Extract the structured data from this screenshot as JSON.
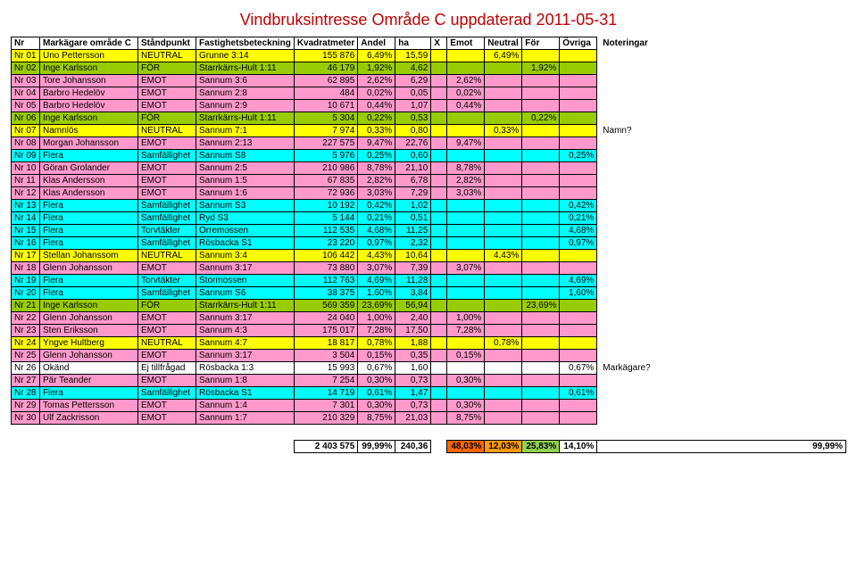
{
  "title": "Vindbruksintresse Område C uppdaterad 2011-05-31",
  "columns": [
    "Nr",
    "Markägare område C",
    "Ståndpunkt",
    "Fastighetsbeteckning",
    "Kvadratmeter",
    "Andel",
    "ha",
    "X",
    "Emot",
    "Neutral",
    "För",
    "Övriga",
    "Noteringar"
  ],
  "col_widths": [
    "32px",
    "110px",
    "65px",
    "100px",
    "65px",
    "42px",
    "40px",
    "18px",
    "42px",
    "42px",
    "42px",
    "42px",
    "auto"
  ],
  "colors": {
    "yellow": "#ffff00",
    "pink": "#ff99cc",
    "green": "#99cc00",
    "cyan": "#00ffff",
    "orange": "#ff9900",
    "darkorange": "#ff6600",
    "lightgreen": "#92d050",
    "white": "#ffffff"
  },
  "rows": [
    {
      "nr": "Nr 01",
      "mark": "Uno Pettersson",
      "stand": "NEUTRAL",
      "fast": "Grunne 3:14",
      "kvm": "155 876",
      "andel": "6,49%",
      "ha": "15,59",
      "x": "",
      "emot": "",
      "neutral": "6,49%",
      "for": "",
      "ovr": "",
      "note": "",
      "bg": "yellow"
    },
    {
      "nr": "Nr 02",
      "mark": "Inge Karlsson",
      "stand": "FÖR",
      "fast": "Starrkärrs-Hult 1:11",
      "kvm": "46 179",
      "andel": "1,92%",
      "ha": "4,62",
      "x": "",
      "emot": "",
      "neutral": "",
      "for": "1,92%",
      "ovr": "",
      "note": "",
      "bg": "green"
    },
    {
      "nr": "Nr 03",
      "mark": "Tore Johansson",
      "stand": "EMOT",
      "fast": "Sannum 3:6",
      "kvm": "62 895",
      "andel": "2,62%",
      "ha": "6,29",
      "x": "",
      "emot": "2,62%",
      "neutral": "",
      "for": "",
      "ovr": "",
      "note": "",
      "bg": "pink"
    },
    {
      "nr": "Nr 04",
      "mark": "Barbro Hedelöv",
      "stand": "EMOT",
      "fast": "Sannum 2:8",
      "kvm": "484",
      "andel": "0,02%",
      "ha": "0,05",
      "x": "",
      "emot": "0,02%",
      "neutral": "",
      "for": "",
      "ovr": "",
      "note": "",
      "bg": "pink"
    },
    {
      "nr": "Nr 05",
      "mark": "Barbro Hedelöv",
      "stand": "EMOT",
      "fast": "Sannum 2:9",
      "kvm": "10 671",
      "andel": "0,44%",
      "ha": "1,07",
      "x": "",
      "emot": "0,44%",
      "neutral": "",
      "for": "",
      "ovr": "",
      "note": "",
      "bg": "pink"
    },
    {
      "nr": "Nr 06",
      "mark": "Inge Karlsson",
      "stand": "FÖR",
      "fast": "Starrkärrs-Hult 1:11",
      "kvm": "5 304",
      "andel": "0,22%",
      "ha": "0,53",
      "x": "",
      "emot": "",
      "neutral": "",
      "for": "0,22%",
      "ovr": "",
      "note": "",
      "bg": "green"
    },
    {
      "nr": "Nr 07",
      "mark": "Namnlös",
      "stand": "NEUTRAL",
      "fast": "Sannum 7:1",
      "kvm": "7 974",
      "andel": "0,33%",
      "ha": "0,80",
      "x": "",
      "emot": "",
      "neutral": "0,33%",
      "for": "",
      "ovr": "",
      "note": "Namn?",
      "bg": "yellow"
    },
    {
      "nr": "Nr 08",
      "mark": "Morgan Johansson",
      "stand": "EMOT",
      "fast": "Sannum 2:13",
      "kvm": "227 575",
      "andel": "9,47%",
      "ha": "22,76",
      "x": "",
      "emot": "9,47%",
      "neutral": "",
      "for": "",
      "ovr": "",
      "note": "",
      "bg": "pink"
    },
    {
      "nr": "Nr 09",
      "mark": "Flera",
      "stand": "Samfällighet",
      "fast": "Sannum S8",
      "kvm": "5 976",
      "andel": "0,25%",
      "ha": "0,60",
      "x": "",
      "emot": "",
      "neutral": "",
      "for": "",
      "ovr": "0,25%",
      "note": "",
      "bg": "cyan"
    },
    {
      "nr": "Nr 10",
      "mark": "Göran Grolander",
      "stand": "EMOT",
      "fast": "Sannum 2:5",
      "kvm": "210 986",
      "andel": "8,78%",
      "ha": "21,10",
      "x": "",
      "emot": "8,78%",
      "neutral": "",
      "for": "",
      "ovr": "",
      "note": "",
      "bg": "pink"
    },
    {
      "nr": "Nr 11",
      "mark": "Klas Andersson",
      "stand": "EMOT",
      "fast": "Sannum 1:5",
      "kvm": "67 835",
      "andel": "2,82%",
      "ha": "6,78",
      "x": "",
      "emot": "2,82%",
      "neutral": "",
      "for": "",
      "ovr": "",
      "note": "",
      "bg": "pink"
    },
    {
      "nr": "Nr 12",
      "mark": "Klas Andersson",
      "stand": "EMOT",
      "fast": "Sannum 1:6",
      "kvm": "72 936",
      "andel": "3,03%",
      "ha": "7,29",
      "x": "",
      "emot": "3,03%",
      "neutral": "",
      "for": "",
      "ovr": "",
      "note": "",
      "bg": "pink"
    },
    {
      "nr": "Nr 13",
      "mark": "Flera",
      "stand": "Samfällighet",
      "fast": "Sannum S3",
      "kvm": "10 192",
      "andel": "0,42%",
      "ha": "1,02",
      "x": "",
      "emot": "",
      "neutral": "",
      "for": "",
      "ovr": "0,42%",
      "note": "",
      "bg": "cyan"
    },
    {
      "nr": "Nr 14",
      "mark": "Flera",
      "stand": "Samfällighet",
      "fast": "Ryd S3",
      "kvm": "5 144",
      "andel": "0,21%",
      "ha": "0,51",
      "x": "",
      "emot": "",
      "neutral": "",
      "for": "",
      "ovr": "0,21%",
      "note": "",
      "bg": "cyan"
    },
    {
      "nr": "Nr 15",
      "mark": "Flera",
      "stand": "Torvtäkter",
      "fast": "Orremossen",
      "kvm": "112 535",
      "andel": "4,68%",
      "ha": "11,25",
      "x": "",
      "emot": "",
      "neutral": "",
      "for": "",
      "ovr": "4,68%",
      "note": "",
      "bg": "cyan"
    },
    {
      "nr": "Nr 16",
      "mark": "Flera",
      "stand": "Samfällighet",
      "fast": "Rösbacka S1",
      "kvm": "23 220",
      "andel": "0,97%",
      "ha": "2,32",
      "x": "",
      "emot": "",
      "neutral": "",
      "for": "",
      "ovr": "0,97%",
      "note": "",
      "bg": "cyan"
    },
    {
      "nr": "Nr 17",
      "mark": "Stellan Johanssom",
      "stand": "NEUTRAL",
      "fast": "Sannum 3:4",
      "kvm": "106 442",
      "andel": "4,43%",
      "ha": "10,64",
      "x": "",
      "emot": "",
      "neutral": "4,43%",
      "for": "",
      "ovr": "",
      "note": "",
      "bg": "yellow"
    },
    {
      "nr": "Nr 18",
      "mark": "Glenn Johansson",
      "stand": "EMOT",
      "fast": "Sannum 3:17",
      "kvm": "73 880",
      "andel": "3,07%",
      "ha": "7,39",
      "x": "",
      "emot": "3,07%",
      "neutral": "",
      "for": "",
      "ovr": "",
      "note": "",
      "bg": "pink"
    },
    {
      "nr": "Nr 19",
      "mark": "Flera",
      "stand": "Torvtäkter",
      "fast": "Stormossen",
      "kvm": "112 763",
      "andel": "4,69%",
      "ha": "11,28",
      "x": "",
      "emot": "",
      "neutral": "",
      "for": "",
      "ovr": "4,69%",
      "note": "",
      "bg": "cyan"
    },
    {
      "nr": "Nr 20",
      "mark": "Flera",
      "stand": "Samfällighet",
      "fast": "Sannum S6",
      "kvm": "38 375",
      "andel": "1,60%",
      "ha": "3,84",
      "x": "",
      "emot": "",
      "neutral": "",
      "for": "",
      "ovr": "1,60%",
      "note": "",
      "bg": "cyan"
    },
    {
      "nr": "Nr 21",
      "mark": "Inge Karlsson",
      "stand": "FÖR",
      "fast": "Starrkärrs-Hult 1:11",
      "kvm": "569 359",
      "andel": "23,69%",
      "ha": "56,94",
      "x": "",
      "emot": "",
      "neutral": "",
      "for": "23,69%",
      "ovr": "",
      "note": "",
      "bg": "green"
    },
    {
      "nr": "Nr 22",
      "mark": "Glenn Johansson",
      "stand": "EMOT",
      "fast": "Sannum 3:17",
      "kvm": "24 040",
      "andel": "1,00%",
      "ha": "2,40",
      "x": "",
      "emot": "1,00%",
      "neutral": "",
      "for": "",
      "ovr": "",
      "note": "",
      "bg": "pink"
    },
    {
      "nr": "Nr 23",
      "mark": "Sten Eriksson",
      "stand": "EMOT",
      "fast": "Sannum 4:3",
      "kvm": "175 017",
      "andel": "7,28%",
      "ha": "17,50",
      "x": "",
      "emot": "7,28%",
      "neutral": "",
      "for": "",
      "ovr": "",
      "note": "",
      "bg": "pink"
    },
    {
      "nr": "Nr 24",
      "mark": "Yngve Hultberg",
      "stand": "NEUTRAL",
      "fast": "Sannum 4:7",
      "kvm": "18 817",
      "andel": "0,78%",
      "ha": "1,88",
      "x": "",
      "emot": "",
      "neutral": "0,78%",
      "for": "",
      "ovr": "",
      "note": "",
      "bg": "yellow"
    },
    {
      "nr": "Nr 25",
      "mark": "Glenn Johansson",
      "stand": "EMOT",
      "fast": "Sannum 3:17",
      "kvm": "3 504",
      "andel": "0,15%",
      "ha": "0,35",
      "x": "",
      "emot": "0,15%",
      "neutral": "",
      "for": "",
      "ovr": "",
      "note": "",
      "bg": "pink"
    },
    {
      "nr": "Nr 26",
      "mark": "Okänd",
      "stand": "Ej tillfrågad",
      "fast": "Rösbacka 1:3",
      "kvm": "15 993",
      "andel": "0,67%",
      "ha": "1,60",
      "x": "",
      "emot": "",
      "neutral": "",
      "for": "",
      "ovr": "0,67%",
      "note": "Markägare?",
      "bg": "white"
    },
    {
      "nr": "Nr 27",
      "mark": "Pär Teander",
      "stand": "EMOT",
      "fast": "Sannum 1:8",
      "kvm": "7 254",
      "andel": "0,30%",
      "ha": "0,73",
      "x": "",
      "emot": "0,30%",
      "neutral": "",
      "for": "",
      "ovr": "",
      "note": "",
      "bg": "pink"
    },
    {
      "nr": "Nr 28",
      "mark": "Flera",
      "stand": "Samfällighet",
      "fast": "Rösbacka S1",
      "kvm": "14 719",
      "andel": "0,61%",
      "ha": "1,47",
      "x": "",
      "emot": "",
      "neutral": "",
      "for": "",
      "ovr": "0,61%",
      "note": "",
      "bg": "cyan"
    },
    {
      "nr": "Nr 29",
      "mark": "Tomas Pettersson",
      "stand": "EMOT",
      "fast": "Sannum 1:4",
      "kvm": "7 301",
      "andel": "0,30%",
      "ha": "0,73",
      "x": "",
      "emot": "0,30%",
      "neutral": "",
      "for": "",
      "ovr": "",
      "note": "",
      "bg": "pink"
    },
    {
      "nr": "Nr 30",
      "mark": "Ulf Zackrisson",
      "stand": "EMOT",
      "fast": "Sannum 1:7",
      "kvm": "210 329",
      "andel": "8,75%",
      "ha": "21,03",
      "x": "",
      "emot": "8,75%",
      "neutral": "",
      "for": "",
      "ovr": "",
      "note": "",
      "bg": "pink"
    }
  ],
  "summary": {
    "kvm": "2 403 575",
    "andel": "99,99%",
    "ha": "240,36",
    "emot": {
      "val": "48,03%",
      "bg": "darkorange"
    },
    "neutral": {
      "val": "12,03%",
      "bg": "orange"
    },
    "for": {
      "val": "25,83%",
      "bg": "lightgreen"
    },
    "ovr": {
      "val": "14,10%",
      "bg": "white"
    },
    "total": {
      "val": "99,99%",
      "bg": "white"
    }
  }
}
